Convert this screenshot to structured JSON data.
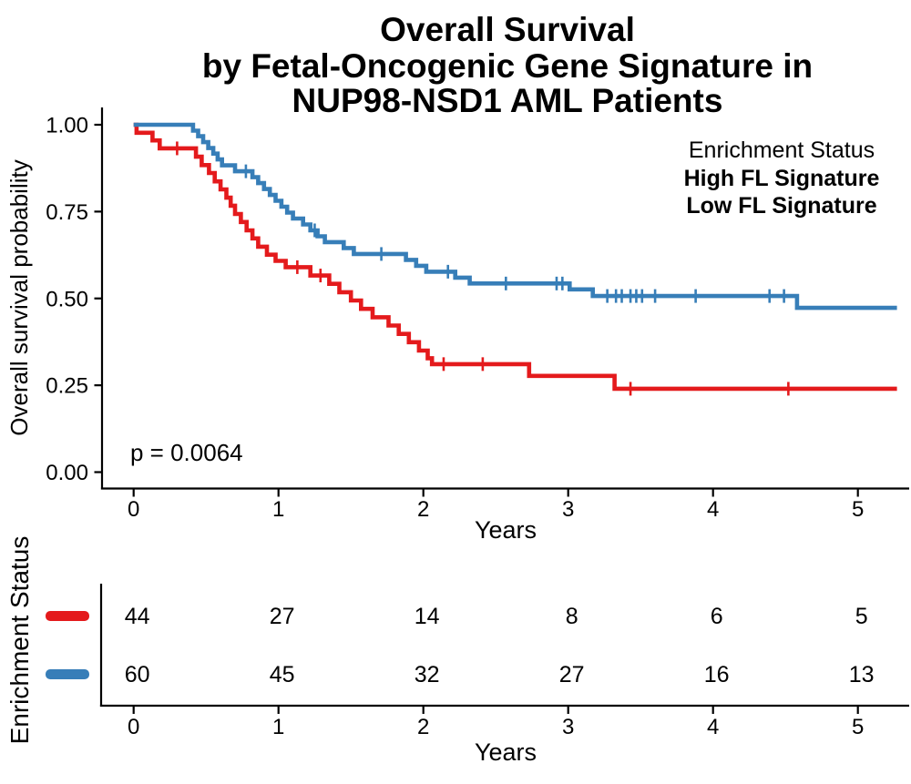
{
  "title": {
    "lines": [
      "Overall Survival",
      "by Fetal-Oncogenic Gene Signature in",
      "NUP98-NSD1 AML Patients"
    ]
  },
  "legend": {
    "title": "Enrichment Status",
    "items": [
      {
        "label": "High FL Signature",
        "color": "#E41A1C"
      },
      {
        "label": "Low FL Signature",
        "color": "#377EB8"
      }
    ]
  },
  "p_value": "p = 0.0064",
  "main_axes": {
    "x_label": "Years",
    "y_label": "Overall survival probability",
    "x_ticks": [
      "0",
      "1",
      "2",
      "3",
      "4",
      "5"
    ],
    "y_ticks": [
      "1.00",
      "0.75",
      "0.50",
      "0.25",
      "0.00"
    ]
  },
  "risk_table": {
    "y_label": "Enrichment Status",
    "x_label": "Years",
    "x_ticks": [
      "0",
      "1",
      "2",
      "3",
      "4",
      "5"
    ]
  },
  "chart_data": {
    "type": "line",
    "subtype": "kaplan-meier-step",
    "title": "Overall Survival by Fetal-Oncogenic Gene Signature in NUP98-NSD1 AML Patients",
    "xlabel": "Years",
    "ylabel": "Overall survival probability",
    "xlim": [
      0,
      5.27
    ],
    "ylim": [
      0,
      1
    ],
    "x_tick_values": [
      0,
      1,
      2,
      3,
      4,
      5
    ],
    "y_tick_values": [
      1.0,
      0.75,
      0.5,
      0.25,
      0.0
    ],
    "grid": false,
    "legend_position": "top-right-inside",
    "p_value_text": "p = 0.0064",
    "risk_times": [
      0,
      1,
      2,
      3,
      4,
      5
    ],
    "series": [
      {
        "name": "High FL Signature",
        "color": "#E41A1C",
        "n": 44,
        "steps": [
          [
            0,
            1.0
          ],
          [
            0.02,
            0.977
          ],
          [
            0.13,
            0.955
          ],
          [
            0.18,
            0.932
          ],
          [
            0.43,
            0.908
          ],
          [
            0.47,
            0.884
          ],
          [
            0.52,
            0.861
          ],
          [
            0.56,
            0.837
          ],
          [
            0.6,
            0.814
          ],
          [
            0.64,
            0.79
          ],
          [
            0.67,
            0.767
          ],
          [
            0.7,
            0.743
          ],
          [
            0.74,
            0.72
          ],
          [
            0.78,
            0.696
          ],
          [
            0.82,
            0.673
          ],
          [
            0.86,
            0.649
          ],
          [
            0.92,
            0.626
          ],
          [
            0.98,
            0.608
          ],
          [
            1.05,
            0.59
          ],
          [
            1.22,
            0.566
          ],
          [
            1.35,
            0.542
          ],
          [
            1.42,
            0.518
          ],
          [
            1.5,
            0.494
          ],
          [
            1.57,
            0.47
          ],
          [
            1.65,
            0.446
          ],
          [
            1.76,
            0.422
          ],
          [
            1.83,
            0.398
          ],
          [
            1.9,
            0.374
          ],
          [
            1.97,
            0.35
          ],
          [
            2.03,
            0.328
          ],
          [
            2.06,
            0.311
          ],
          [
            2.73,
            0.277
          ],
          [
            3.32,
            0.24
          ],
          [
            5.27,
            0.24
          ]
        ],
        "censors": [
          [
            0.3,
            0.932
          ],
          [
            1.13,
            0.59
          ],
          [
            1.29,
            0.566
          ],
          [
            2.14,
            0.311
          ],
          [
            2.41,
            0.311
          ],
          [
            3.43,
            0.24
          ],
          [
            4.52,
            0.24
          ]
        ],
        "risk_counts": [
          44,
          27,
          14,
          8,
          6,
          5
        ]
      },
      {
        "name": "Low FL Signature",
        "color": "#377EB8",
        "n": 60,
        "steps": [
          [
            0,
            1.0
          ],
          [
            0.41,
            0.983
          ],
          [
            0.445,
            0.967
          ],
          [
            0.48,
            0.95
          ],
          [
            0.515,
            0.933
          ],
          [
            0.55,
            0.917
          ],
          [
            0.58,
            0.9
          ],
          [
            0.61,
            0.883
          ],
          [
            0.7,
            0.866
          ],
          [
            0.82,
            0.849
          ],
          [
            0.86,
            0.832
          ],
          [
            0.9,
            0.815
          ],
          [
            0.94,
            0.798
          ],
          [
            0.98,
            0.781
          ],
          [
            1.02,
            0.764
          ],
          [
            1.06,
            0.747
          ],
          [
            1.1,
            0.73
          ],
          [
            1.17,
            0.713
          ],
          [
            1.22,
            0.696
          ],
          [
            1.27,
            0.679
          ],
          [
            1.32,
            0.662
          ],
          [
            1.45,
            0.645
          ],
          [
            1.52,
            0.628
          ],
          [
            1.88,
            0.611
          ],
          [
            1.95,
            0.594
          ],
          [
            2.02,
            0.577
          ],
          [
            2.22,
            0.56
          ],
          [
            2.32,
            0.543
          ],
          [
            3.01,
            0.526
          ],
          [
            3.17,
            0.507
          ],
          [
            4.58,
            0.473
          ],
          [
            5.27,
            0.473
          ]
        ],
        "censors": [
          [
            0.775,
            0.866
          ],
          [
            1.25,
            0.696
          ],
          [
            1.71,
            0.628
          ],
          [
            2.17,
            0.577
          ],
          [
            2.57,
            0.543
          ],
          [
            2.92,
            0.543
          ],
          [
            2.96,
            0.543
          ],
          [
            3.27,
            0.507
          ],
          [
            3.33,
            0.507
          ],
          [
            3.37,
            0.507
          ],
          [
            3.43,
            0.507
          ],
          [
            3.47,
            0.507
          ],
          [
            3.51,
            0.507
          ],
          [
            3.6,
            0.507
          ],
          [
            3.88,
            0.507
          ],
          [
            4.39,
            0.507
          ],
          [
            4.49,
            0.507
          ]
        ],
        "risk_counts": [
          60,
          45,
          32,
          27,
          16,
          13
        ]
      }
    ]
  }
}
